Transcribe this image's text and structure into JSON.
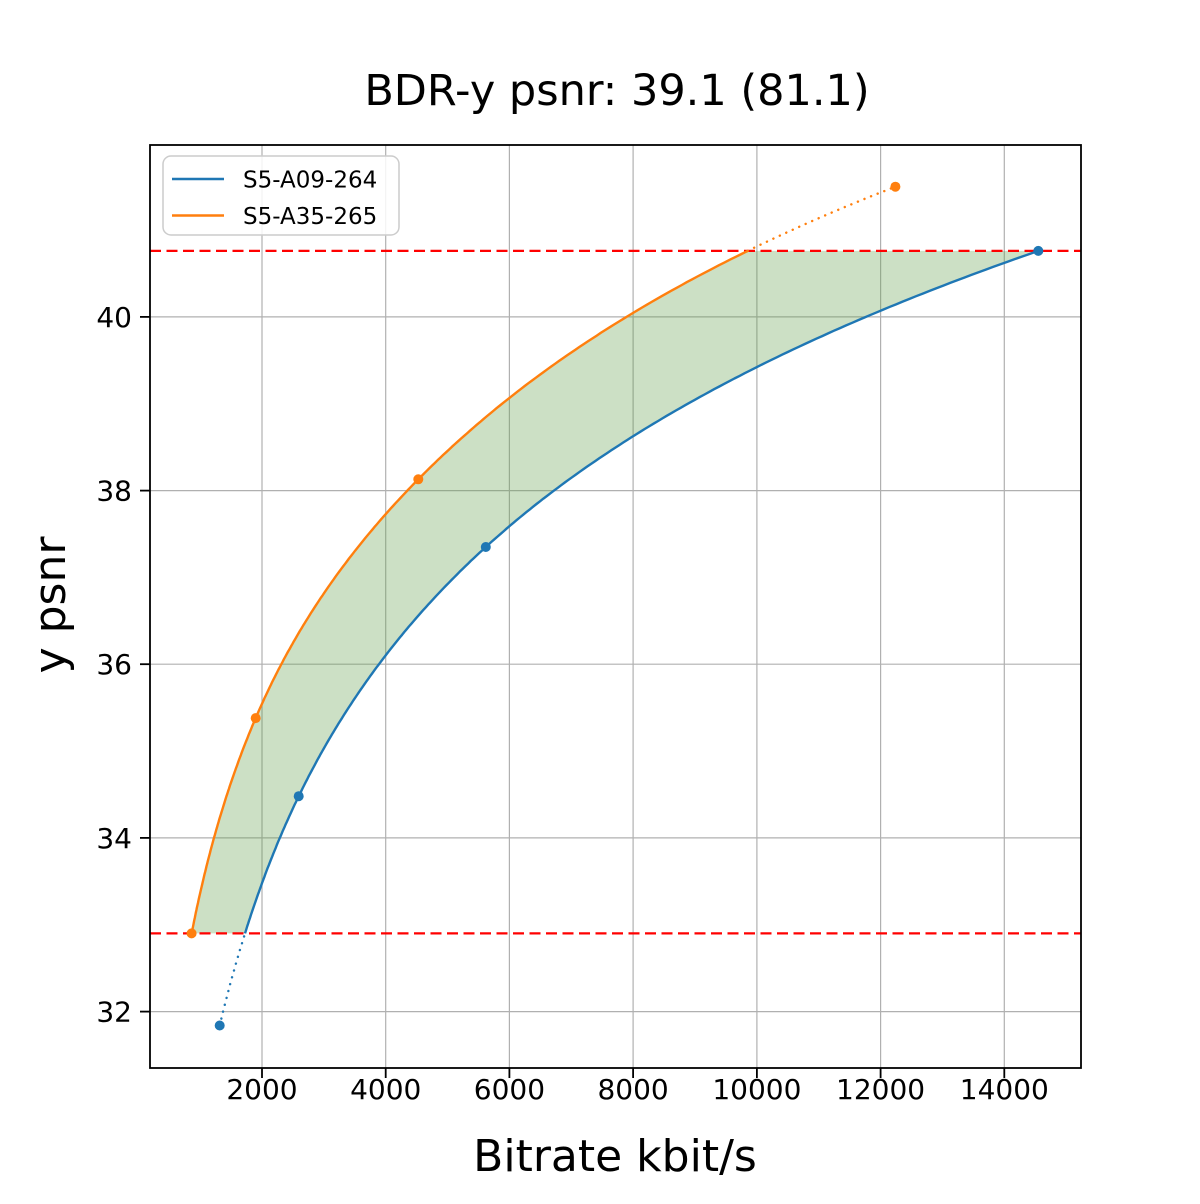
{
  "chart_data": {
    "type": "line",
    "title": "BDR-y psnr: 39.1 (81.1)",
    "xlabel": "Bitrate kbit/s",
    "ylabel": "y psnr",
    "xlim": [
      190,
      15240
    ],
    "ylim": [
      31.35,
      41.98
    ],
    "xticks": [
      2000,
      4000,
      6000,
      8000,
      10000,
      12000,
      14000
    ],
    "yticks": [
      32,
      34,
      36,
      38,
      40
    ],
    "grid": true,
    "grid_color": "#b0b0b0",
    "spine_color": "#000000",
    "series": [
      {
        "name": "S5-A09-264",
        "color": "#1f77b4",
        "points": [
          [
            1316,
            31.84
          ],
          [
            2594,
            34.48
          ],
          [
            5618,
            37.35
          ],
          [
            14550,
            40.76
          ]
        ]
      },
      {
        "name": "S5-A35-265",
        "color": "#ff7f0e",
        "points": [
          [
            863,
            32.9
          ],
          [
            1898,
            35.38
          ],
          [
            4527,
            38.13
          ],
          [
            12240,
            41.5
          ]
        ]
      }
    ],
    "overlap_lines": {
      "low": 32.9,
      "high": 40.76,
      "color": "#ff0000",
      "style": "dashed"
    },
    "shaded_region": {
      "color": "#64a050",
      "alpha": 0.33,
      "between": [
        "S5-A35-265",
        "S5-A09-264"
      ],
      "psnr_range": [
        32.9,
        40.76
      ]
    },
    "legend": {
      "position": "upper-left"
    }
  }
}
